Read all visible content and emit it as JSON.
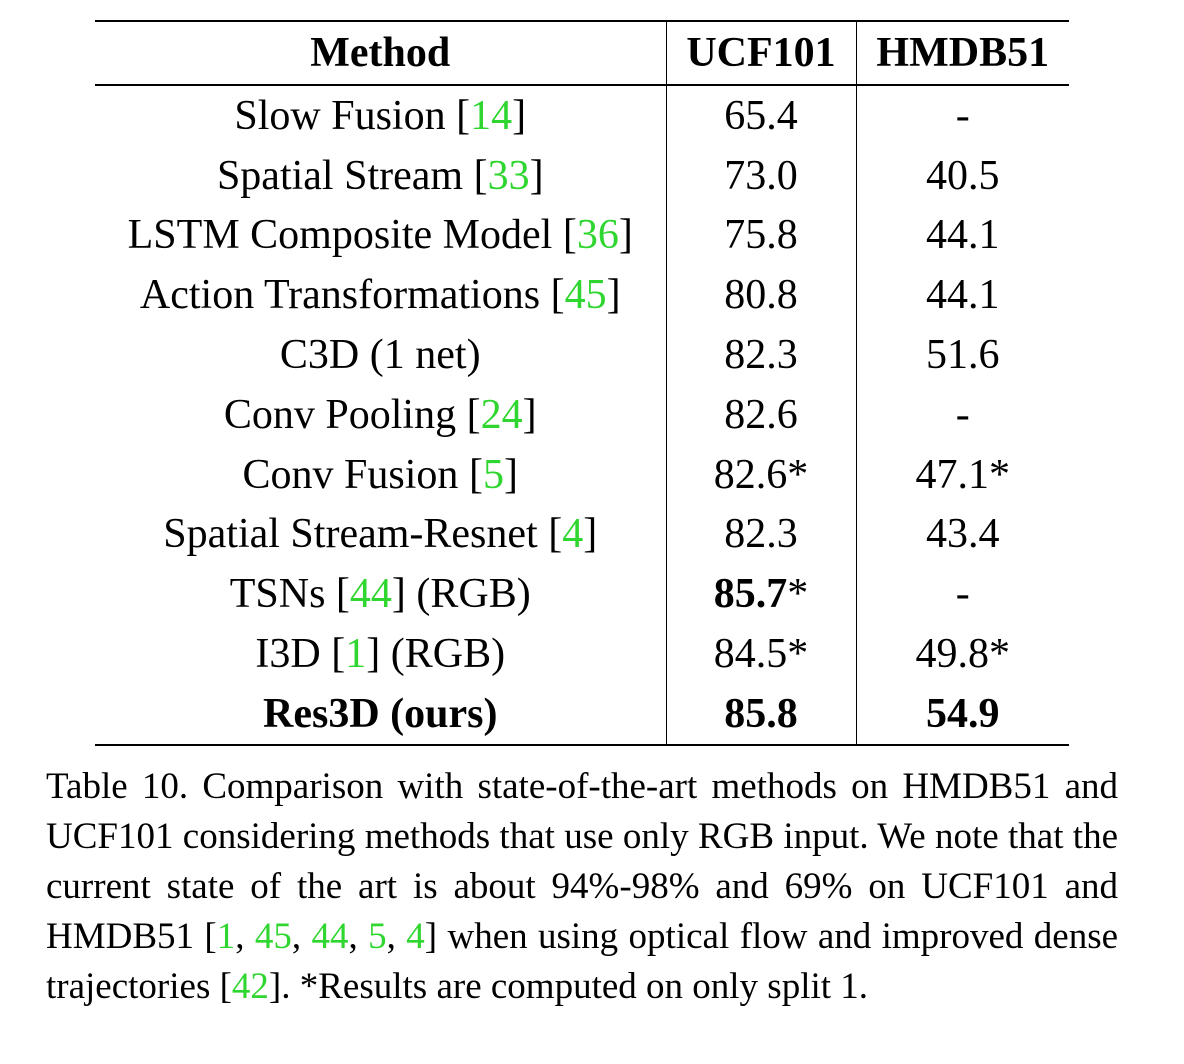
{
  "table": {
    "headers": [
      "Method",
      "UCF101",
      "HMDB51"
    ],
    "rows": [
      {
        "method": "Slow Fusion",
        "cite": "14",
        "suffix": "",
        "ucf": "65.4",
        "hmdb": "-",
        "bold_method": false,
        "bold_ucf": false,
        "bold_hmdb": false
      },
      {
        "method": "Spatial Stream",
        "cite": "33",
        "suffix": "",
        "ucf": "73.0",
        "hmdb": "40.5",
        "bold_method": false,
        "bold_ucf": false,
        "bold_hmdb": false
      },
      {
        "method": "LSTM Composite Model",
        "cite": "36",
        "suffix": "",
        "ucf": "75.8",
        "hmdb": "44.1",
        "bold_method": false,
        "bold_ucf": false,
        "bold_hmdb": false
      },
      {
        "method": "Action Transformations",
        "cite": "45",
        "suffix": "",
        "ucf": "80.8",
        "hmdb": "44.1",
        "bold_method": false,
        "bold_ucf": false,
        "bold_hmdb": false
      },
      {
        "method": "C3D (1 net)",
        "cite": "",
        "suffix": "",
        "ucf": "82.3",
        "hmdb": "51.6",
        "bold_method": false,
        "bold_ucf": false,
        "bold_hmdb": false
      },
      {
        "method": "Conv Pooling",
        "cite": "24",
        "suffix": "",
        "ucf": "82.6",
        "hmdb": "-",
        "bold_method": false,
        "bold_ucf": false,
        "bold_hmdb": false
      },
      {
        "method": "Conv Fusion",
        "cite": "5",
        "suffix": "",
        "ucf": "82.6*",
        "hmdb": "47.1*",
        "bold_method": false,
        "bold_ucf": false,
        "bold_hmdb": false
      },
      {
        "method": "Spatial Stream-Resnet",
        "cite": "4",
        "suffix": "",
        "ucf": "82.3",
        "hmdb": "43.4",
        "bold_method": false,
        "bold_ucf": false,
        "bold_hmdb": false
      },
      {
        "method": "TSNs",
        "cite": "44",
        "suffix": "(RGB)",
        "ucf": "85.7",
        "ucf_star": "*",
        "hmdb": "-",
        "bold_method": false,
        "bold_ucf": true,
        "bold_hmdb": false
      },
      {
        "method": "I3D",
        "cite": "1",
        "suffix": "(RGB)",
        "ucf": "84.5*",
        "hmdb": "49.8*",
        "bold_method": false,
        "bold_ucf": false,
        "bold_hmdb": false
      },
      {
        "method": "Res3D (ours)",
        "cite": "",
        "suffix": "",
        "ucf": "85.8",
        "hmdb": "54.9",
        "bold_method": true,
        "bold_ucf": true,
        "bold_hmdb": true
      }
    ]
  },
  "caption": {
    "parts": [
      {
        "text": "Table 10. Comparison with state-of-the-art methods on HMDB51 and UCF101 considering methods that use only RGB input.  We note that the current state of the art is about 94%-98% and 69% on UCF101 and HMDB51 [",
        "cite": false
      },
      {
        "text": "1",
        "cite": true
      },
      {
        "text": ", ",
        "cite": false
      },
      {
        "text": "45",
        "cite": true
      },
      {
        "text": ", ",
        "cite": false
      },
      {
        "text": "44",
        "cite": true
      },
      {
        "text": ", ",
        "cite": false
      },
      {
        "text": "5",
        "cite": true
      },
      {
        "text": ", ",
        "cite": false
      },
      {
        "text": "4",
        "cite": true
      },
      {
        "text": "] when using optical flow and improved dense trajectories [",
        "cite": false
      },
      {
        "text": "42",
        "cite": true
      },
      {
        "text": "].  *Results are computed on only split 1.",
        "cite": false
      }
    ]
  },
  "colors": {
    "citation": "#2fd62f",
    "text": "#000000"
  }
}
